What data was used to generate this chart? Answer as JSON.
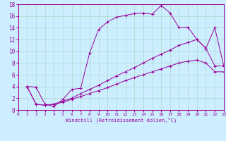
{
  "xlabel": "Windchill (Refroidissement éolien,°C)",
  "bg_color": "#cceeff",
  "line_color": "#990099",
  "grid_color": "#b0d8cc",
  "xlim": [
    0,
    23
  ],
  "ylim": [
    0,
    18
  ],
  "xticks": [
    0,
    1,
    2,
    3,
    4,
    5,
    6,
    7,
    8,
    9,
    10,
    11,
    12,
    13,
    14,
    15,
    16,
    17,
    18,
    19,
    20,
    21,
    22,
    23
  ],
  "yticks": [
    0,
    2,
    4,
    6,
    8,
    10,
    12,
    14,
    16,
    18
  ],
  "line1_x": [
    1,
    2,
    3,
    4,
    5,
    6,
    7,
    8,
    9,
    10,
    11,
    12,
    13,
    14,
    15,
    16,
    17,
    18,
    19,
    20,
    21,
    22,
    23
  ],
  "line1_y": [
    4.0,
    3.9,
    1.0,
    0.6,
    1.8,
    3.5,
    3.7,
    9.7,
    13.7,
    15.0,
    15.8,
    16.1,
    16.4,
    16.5,
    16.3,
    17.8,
    16.5,
    14.0,
    14.1,
    12.0,
    10.5,
    14.0,
    7.5
  ],
  "line2_x": [
    1,
    2,
    3,
    4,
    5,
    6,
    7,
    8,
    9,
    10,
    11,
    12,
    13,
    14,
    15,
    16,
    17,
    18,
    19,
    20,
    21,
    22,
    23
  ],
  "line2_y": [
    4.0,
    1.0,
    0.8,
    1.0,
    1.5,
    2.0,
    2.8,
    3.5,
    4.2,
    5.0,
    5.8,
    6.5,
    7.2,
    8.0,
    8.8,
    9.5,
    10.2,
    11.0,
    11.5,
    12.0,
    10.5,
    7.5,
    7.5
  ],
  "line3_x": [
    1,
    2,
    3,
    4,
    5,
    6,
    7,
    8,
    9,
    10,
    11,
    12,
    13,
    14,
    15,
    16,
    17,
    18,
    19,
    20,
    21,
    22,
    23
  ],
  "line3_y": [
    4.0,
    1.0,
    0.8,
    1.0,
    1.3,
    1.8,
    2.3,
    2.8,
    3.3,
    3.8,
    4.4,
    5.0,
    5.5,
    6.0,
    6.5,
    7.0,
    7.5,
    8.0,
    8.3,
    8.5,
    8.0,
    6.5,
    6.5
  ]
}
